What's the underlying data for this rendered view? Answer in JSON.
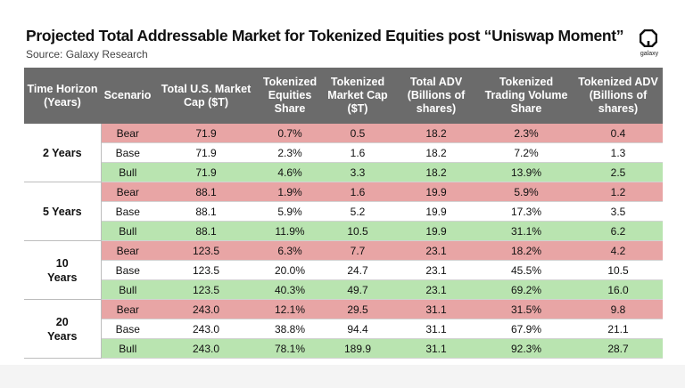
{
  "header": {
    "title": "Projected Total Addressable Market for Tokenized Equities post “Uniswap Moment”",
    "source": "Source: Galaxy Research",
    "logo_text": "galaxy"
  },
  "chart_data": {
    "type": "table",
    "columns": [
      "Time Horizon (Years)",
      "Scenario",
      "Total U.S. Market Cap ($T)",
      "Tokenized Equities Share",
      "Tokenized Market Cap ($T)",
      "Total ADV (Billions of shares)",
      "Tokenized Trading Volume Share",
      "Tokenized ADV (Billions of shares)"
    ],
    "groups": [
      {
        "horizon": "2 Years",
        "rows": [
          {
            "scenario": "Bear",
            "values": [
              "71.9",
              "0.7%",
              "0.5",
              "18.2",
              "2.3%",
              "0.4"
            ]
          },
          {
            "scenario": "Base",
            "values": [
              "71.9",
              "2.3%",
              "1.6",
              "18.2",
              "7.2%",
              "1.3"
            ]
          },
          {
            "scenario": "Bull",
            "values": [
              "71.9",
              "4.6%",
              "3.3",
              "18.2",
              "13.9%",
              "2.5"
            ]
          }
        ]
      },
      {
        "horizon": "5 Years",
        "rows": [
          {
            "scenario": "Bear",
            "values": [
              "88.1",
              "1.9%",
              "1.6",
              "19.9",
              "5.9%",
              "1.2"
            ]
          },
          {
            "scenario": "Base",
            "values": [
              "88.1",
              "5.9%",
              "5.2",
              "19.9",
              "17.3%",
              "3.5"
            ]
          },
          {
            "scenario": "Bull",
            "values": [
              "88.1",
              "11.9%",
              "10.5",
              "19.9",
              "31.1%",
              "6.2"
            ]
          }
        ]
      },
      {
        "horizon": "10 Years",
        "rows": [
          {
            "scenario": "Bear",
            "values": [
              "123.5",
              "6.3%",
              "7.7",
              "23.1",
              "18.2%",
              "4.2"
            ]
          },
          {
            "scenario": "Base",
            "values": [
              "123.5",
              "20.0%",
              "24.7",
              "23.1",
              "45.5%",
              "10.5"
            ]
          },
          {
            "scenario": "Bull",
            "values": [
              "123.5",
              "40.3%",
              "49.7",
              "23.1",
              "69.2%",
              "16.0"
            ]
          }
        ]
      },
      {
        "horizon": "20 Years",
        "rows": [
          {
            "scenario": "Bear",
            "values": [
              "243.0",
              "12.1%",
              "29.5",
              "31.1",
              "31.5%",
              "9.8"
            ]
          },
          {
            "scenario": "Base",
            "values": [
              "243.0",
              "38.8%",
              "94.4",
              "31.1",
              "67.9%",
              "21.1"
            ]
          },
          {
            "scenario": "Bull",
            "values": [
              "243.0",
              "78.1%",
              "189.9",
              "31.1",
              "92.3%",
              "28.7"
            ]
          }
        ]
      }
    ],
    "scenario_colors": {
      "Bear": "#e8a5a5",
      "Base": "#ffffff",
      "Bull": "#b9e4b0"
    },
    "header_color": "#6b6b6b"
  }
}
